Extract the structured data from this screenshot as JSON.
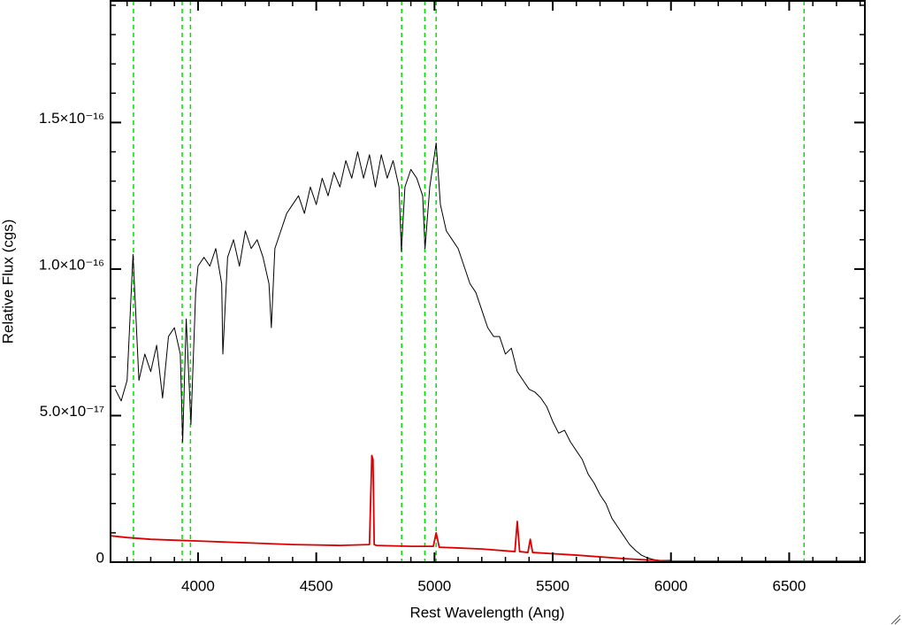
{
  "chart_data": {
    "type": "line",
    "xlabel": "Rest Wavelength (Ang)",
    "ylabel": "Relative Flux (cgs)",
    "xlim": [
      3630,
      6820
    ],
    "ylim": [
      0,
      1.915e-16
    ],
    "xticks": [
      4000,
      4500,
      5000,
      5500,
      6000,
      6500
    ],
    "yticks": [
      0,
      {
        "value": 5e-17,
        "label": "5.0×10⁻¹⁷"
      },
      {
        "value": 1e-16,
        "label": "1.0×10⁻¹⁶"
      },
      {
        "value": 1.5e-16,
        "label": "1.5×10⁻¹⁶"
      }
    ],
    "xminorticks": [
      3700,
      3800,
      3900,
      4100,
      4200,
      4300,
      4400,
      4600,
      4700,
      4800,
      4900,
      5100,
      5200,
      5300,
      5400,
      5600,
      5700,
      5800,
      5900,
      6100,
      6200,
      6300,
      6400,
      6600,
      6700,
      6800
    ],
    "yminorticks": [
      1e-17,
      2e-17,
      3e-17,
      4e-17,
      6e-17,
      7e-17,
      8e-17,
      9e-17,
      1.1e-16,
      1.2e-16,
      1.3e-16,
      1.4e-16,
      1.6e-16,
      1.7e-16,
      1.8e-16,
      1.9e-16
    ],
    "vlines": {
      "color": "#00e000",
      "x": [
        3727,
        3933,
        3968,
        4861,
        4959,
        5007,
        6563
      ]
    },
    "series": [
      {
        "color": "#000000",
        "x": [
          3650,
          3675,
          3700,
          3725,
          3750,
          3775,
          3800,
          3825,
          3850,
          3875,
          3900,
          3925,
          3935,
          3950,
          3970,
          3990,
          4000,
          4025,
          4050,
          4075,
          4100,
          4105,
          4125,
          4150,
          4175,
          4200,
          4225,
          4250,
          4275,
          4300,
          4310,
          4325,
          4350,
          4375,
          4400,
          4425,
          4450,
          4475,
          4500,
          4525,
          4550,
          4575,
          4600,
          4625,
          4650,
          4675,
          4700,
          4725,
          4750,
          4775,
          4800,
          4825,
          4850,
          4860,
          4875,
          4900,
          4925,
          4950,
          4960,
          4980,
          5007,
          5025,
          5050,
          5075,
          5100,
          5125,
          5150,
          5175,
          5200,
          5225,
          5250,
          5275,
          5300,
          5325,
          5350,
          5375,
          5400,
          5425,
          5450,
          5475,
          5500,
          5525,
          5550,
          5575,
          5600,
          5625,
          5650,
          5675,
          5700,
          5725,
          5750,
          5775,
          5800,
          5825,
          5850,
          5875,
          5900,
          5925,
          5950,
          5975,
          6000
        ],
        "values": [
          5.9e-17,
          5.5e-17,
          6.2e-17,
          1.05e-16,
          6.2e-17,
          7.1e-17,
          6.5e-17,
          7.4e-17,
          5.6e-17,
          7.7e-17,
          8e-17,
          7.1e-17,
          4.1e-17,
          8.3e-17,
          4.7e-17,
          9.2e-17,
          1.01e-16,
          1.04e-16,
          1.01e-16,
          1.07e-16,
          9.5e-17,
          7.1e-17,
          1.04e-16,
          1.1e-16,
          1.01e-16,
          1.13e-16,
          1.07e-16,
          1.1e-16,
          1.04e-16,
          9.5e-17,
          8e-17,
          1.07e-16,
          1.13e-16,
          1.19e-16,
          1.22e-16,
          1.25e-16,
          1.19e-16,
          1.28e-16,
          1.22e-16,
          1.31e-16,
          1.25e-16,
          1.33e-16,
          1.28e-16,
          1.37e-16,
          1.31e-16,
          1.4e-16,
          1.31e-16,
          1.39e-16,
          1.28e-16,
          1.39e-16,
          1.31e-16,
          1.37e-16,
          1.28e-16,
          1.06e-16,
          1.28e-16,
          1.34e-16,
          1.31e-16,
          1.25e-16,
          1.07e-16,
          1.28e-16,
          1.43e-16,
          1.22e-16,
          1.13e-16,
          1.1e-16,
          1.07e-16,
          1.01e-16,
          9.5e-17,
          9.2e-17,
          8.6e-17,
          8e-17,
          7.7e-17,
          7.7e-17,
          7.1e-17,
          7.3e-17,
          6.5e-17,
          6.2e-17,
          5.9e-17,
          5.8e-17,
          5.6e-17,
          5.3e-17,
          4.8e-17,
          4.4e-17,
          4.5e-17,
          4.1e-17,
          3.8e-17,
          3.5e-17,
          3e-17,
          2.7e-17,
          2.3e-17,
          2e-17,
          1.5e-17,
          1.2e-17,
          9e-18,
          6e-18,
          4e-18,
          2.4e-18,
          1.5e-18,
          9e-19,
          6e-19,
          6e-19,
          6e-19
        ]
      },
      {
        "color": "#dd0000",
        "x": [
          3630,
          3700,
          3800,
          3900,
          4000,
          4200,
          4400,
          4600,
          4725,
          4735,
          4740,
          4745,
          4755,
          4900,
          4995,
          5007,
          5020,
          5200,
          5340,
          5350,
          5360,
          5395,
          5405,
          5415,
          5600,
          5800,
          6000,
          6400,
          6820
        ],
        "values": [
          9e-18,
          8.4e-18,
          7.8e-18,
          7.5e-18,
          7.2e-18,
          6.6e-18,
          6e-18,
          5.7e-18,
          6e-18,
          3.64e-17,
          3.5e-17,
          6e-18,
          5.7e-18,
          5.4e-18,
          5.4e-18,
          1e-17,
          5.1e-18,
          4.5e-18,
          3.6e-18,
          1.39e-17,
          3.6e-18,
          3.3e-18,
          7.8e-18,
          3.3e-18,
          2.4e-18,
          1.2e-18,
          3e-19,
          3e-19,
          3e-19
        ]
      }
    ]
  }
}
